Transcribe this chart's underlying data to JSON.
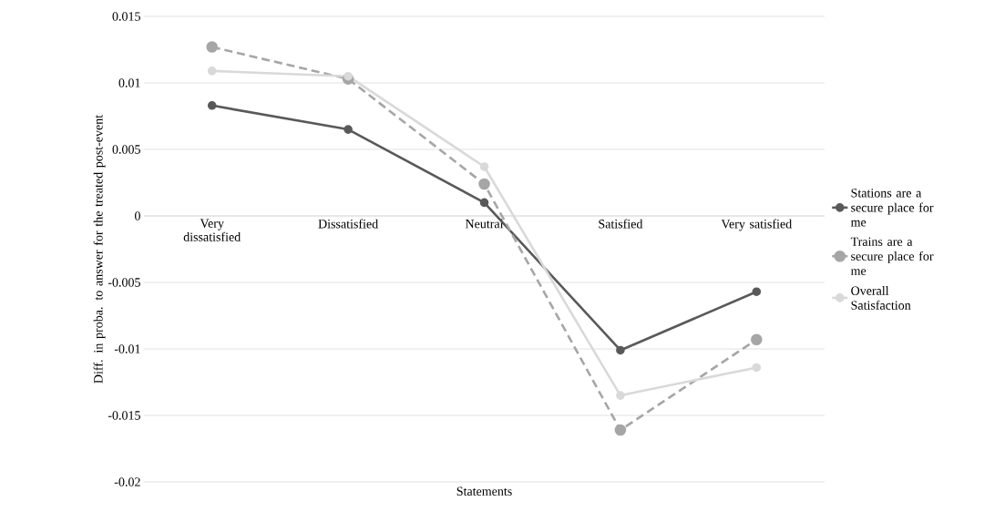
{
  "chart_data": {
    "type": "line",
    "xlabel": "Statements",
    "ylabel": "Diff. in proba. to answer for the treated post-event",
    "categories": [
      "Very dissatisfied",
      "Dissatisfied",
      "Neutral",
      "Satisfied",
      "Very satisfied"
    ],
    "series": [
      {
        "name": "Stations are a secure place for me",
        "color": "#595959",
        "values": [
          0.0083,
          0.0065,
          0.001,
          -0.0101,
          -0.0057
        ],
        "line_style": "solid"
      },
      {
        "name": "Trains are a secure place for me",
        "color": "#a6a6a6",
        "values": [
          0.0127,
          0.0103,
          0.0024,
          -0.0161,
          -0.0093
        ],
        "line_style": "dashed"
      },
      {
        "name": "Overall Satisfaction",
        "color": "#d9d9d9",
        "values": [
          0.0109,
          0.0105,
          0.0037,
          -0.0135,
          -0.0114
        ],
        "line_style": "solid"
      }
    ],
    "ylim": [
      -0.02,
      0.015
    ],
    "yticks": [
      -0.02,
      -0.015,
      -0.01,
      -0.005,
      0,
      0.005,
      0.01,
      0.015
    ],
    "grid": "y",
    "legend": "right",
    "marker": "circle"
  }
}
